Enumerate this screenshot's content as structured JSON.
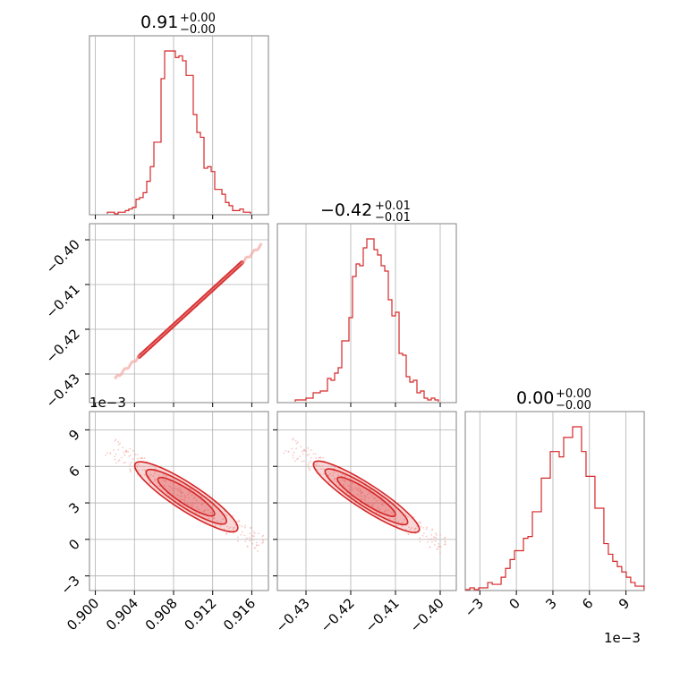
{
  "figure": {
    "accent_color": "#d62728",
    "grid_color": "#b0b0b0",
    "frame_color": "#808080"
  },
  "chart_data": [
    {
      "type": "histogram",
      "parameter": "p0",
      "title": {
        "value": "0.91",
        "upper": "+0.00",
        "lower": "−0.00"
      },
      "xlim": [
        0.8994,
        0.9177
      ],
      "grid_x": [
        0.9,
        0.904,
        0.908,
        0.912,
        0.916
      ],
      "bin_width": 0.000366,
      "counts": [
        1,
        1,
        0,
        1,
        1,
        2,
        3,
        4,
        9,
        10,
        13,
        20,
        29,
        44,
        44,
        83,
        100,
        100,
        100,
        96,
        97,
        94,
        85,
        85,
        61,
        50,
        47,
        28,
        29,
        26,
        15,
        15,
        12,
        7,
        5,
        2,
        2,
        3,
        1,
        1
      ]
    },
    {
      "type": "scatter-contour",
      "x_parameter": "p0",
      "y_parameter": "p1",
      "xlim": [
        0.8994,
        0.9177
      ],
      "ylim": [
        -0.4364,
        -0.3964
      ],
      "x_ticks": [
        "0.900",
        "0.904",
        "0.908",
        "0.912",
        "0.916"
      ],
      "y_ticks": [
        {
          "value": -0.4,
          "label": "−0.40"
        },
        {
          "value": -0.41,
          "label": "−0.41"
        },
        {
          "value": -0.42,
          "label": "−0.42"
        },
        {
          "value": -0.43,
          "label": "−0.43"
        }
      ],
      "relation": {
        "slope": 2.0,
        "x0": 0.9093,
        "y0": -0.4165
      },
      "samples_range": [
        [
          0.902,
          -0.4316
        ],
        [
          0.917,
          -0.4018
        ]
      ]
    },
    {
      "type": "histogram",
      "parameter": "p1",
      "title": {
        "value": "−0.42",
        "upper": "+0.01",
        "lower": "−0.01"
      },
      "xlim": [
        -0.4364,
        -0.3964
      ],
      "grid_x": [
        -0.43,
        -0.42,
        -0.41,
        -0.4
      ],
      "bin_width": 0.0008,
      "counts": [
        1,
        1,
        1,
        2,
        2,
        5,
        5,
        6,
        6,
        13,
        12,
        16,
        19,
        34,
        34,
        47,
        70,
        77,
        76,
        86,
        91,
        91,
        85,
        82,
        76,
        73,
        57,
        48,
        50,
        27,
        26,
        14,
        11,
        12,
        5,
        6,
        2,
        1,
        2,
        1
      ]
    },
    {
      "type": "scatter-contour",
      "x_parameter": "p0",
      "y_parameter": "p2",
      "xlim": [
        0.8994,
        0.9177
      ],
      "ylim": [
        -0.0042,
        0.0105
      ],
      "y_ticks": [
        {
          "value": 0.009,
          "label": "9"
        },
        {
          "value": 0.006,
          "label": "6"
        },
        {
          "value": 0.003,
          "label": "3"
        },
        {
          "value": 0.0,
          "label": "0"
        },
        {
          "value": -0.003,
          "label": "−3"
        }
      ],
      "x_ticks": [
        {
          "value": 0.9,
          "label": "0.900"
        },
        {
          "value": 0.904,
          "label": "0.904"
        },
        {
          "value": 0.908,
          "label": "0.908"
        },
        {
          "value": 0.912,
          "label": "0.912"
        },
        {
          "value": 0.916,
          "label": "0.916"
        }
      ],
      "y_offset_label": "1e−3",
      "relation": {
        "slope": -0.8,
        "x0": 0.9093,
        "y0": 0.0035
      }
    },
    {
      "type": "scatter-contour",
      "x_parameter": "p1",
      "y_parameter": "p2",
      "xlim": [
        -0.4364,
        -0.3964
      ],
      "ylim": [
        -0.0042,
        0.0105
      ],
      "x_ticks": [
        {
          "value": -0.43,
          "label": "−0.43"
        },
        {
          "value": -0.42,
          "label": "−0.42"
        },
        {
          "value": -0.41,
          "label": "−0.41"
        },
        {
          "value": -0.4,
          "label": "−0.40"
        }
      ],
      "relation": {
        "slope": -0.4,
        "x0": -0.4165,
        "y0": 0.0035
      }
    },
    {
      "type": "histogram",
      "parameter": "p2",
      "title": {
        "value": "0.00",
        "upper": "+0.00",
        "lower": "−0.00"
      },
      "xlim": [
        -0.0042,
        0.0105
      ],
      "x_ticks": [
        {
          "value": -0.003,
          "label": "−3"
        },
        {
          "value": 0.0,
          "label": "0"
        },
        {
          "value": 0.003,
          "label": "3"
        },
        {
          "value": 0.006,
          "label": "6"
        },
        {
          "value": 0.009,
          "label": "9"
        }
      ],
      "x_offset_label": "1e−3",
      "bin_width": 0.000367,
      "counts": [
        0,
        1,
        0,
        1,
        1,
        4,
        3,
        3,
        7,
        12,
        17,
        22,
        22,
        29,
        30,
        44,
        44,
        63,
        63,
        78,
        78,
        75,
        86,
        86,
        92,
        92,
        78,
        64,
        64,
        46,
        46,
        26,
        20,
        16,
        13,
        10,
        7,
        4,
        2,
        2
      ]
    }
  ]
}
